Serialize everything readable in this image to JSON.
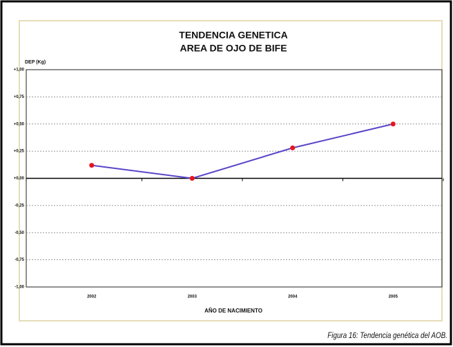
{
  "chart_data": {
    "type": "line",
    "title": [
      "TENDENCIA GENETICA",
      "AREA DE OJO DE BIFE"
    ],
    "y_label": "DEP (Kg)",
    "x_label": "AÑO DE NACIMIENTO",
    "caption": "Figura 16: Tendencia genética del AOB.",
    "categories": [
      "2002",
      "2003",
      "2004",
      "2005"
    ],
    "series": [
      {
        "color": "#5a44c8",
        "marker_color": "#e8141e",
        "values": [
          0.12,
          0.0,
          0.28,
          0.5
        ]
      }
    ],
    "ylim": [
      -1,
      1
    ],
    "yticks": [
      {
        "value": 1,
        "label": "+1,00"
      },
      {
        "value": 0.75,
        "label": "+0,75"
      },
      {
        "value": 0.5,
        "label": "+0,50"
      },
      {
        "value": 0.25,
        "label": "+0,25"
      },
      {
        "value": 0,
        "label": "+0,00"
      },
      {
        "value": -0.25,
        "label": "-0,25"
      },
      {
        "value": -0.5,
        "label": "-0,50"
      },
      {
        "value": -0.75,
        "label": "-0,75"
      },
      {
        "value": -1,
        "label": "-1,00"
      }
    ],
    "grid": true
  }
}
